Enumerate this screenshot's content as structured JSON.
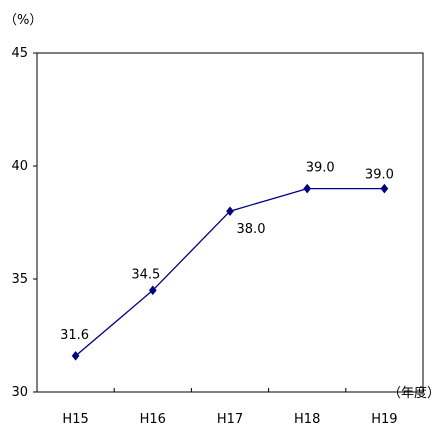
{
  "chart_data": {
    "type": "line",
    "categories": [
      "H15",
      "H16",
      "H17",
      "H18",
      "H19"
    ],
    "series": [
      {
        "values": [
          31.6,
          34.5,
          38.0,
          39.0,
          39.0
        ],
        "color": "#000080",
        "marker": "diamond"
      }
    ],
    "data_labels": [
      "31.6",
      "34.5",
      "38.0",
      "39.0",
      "39.0"
    ],
    "y_unit": "（%）",
    "x_unit": "（年度）",
    "ylim": [
      30,
      45
    ],
    "yticks": [
      30,
      35,
      40,
      45
    ],
    "grid": false,
    "legend": "none",
    "title": "",
    "xlabel": "",
    "ylabel": ""
  }
}
